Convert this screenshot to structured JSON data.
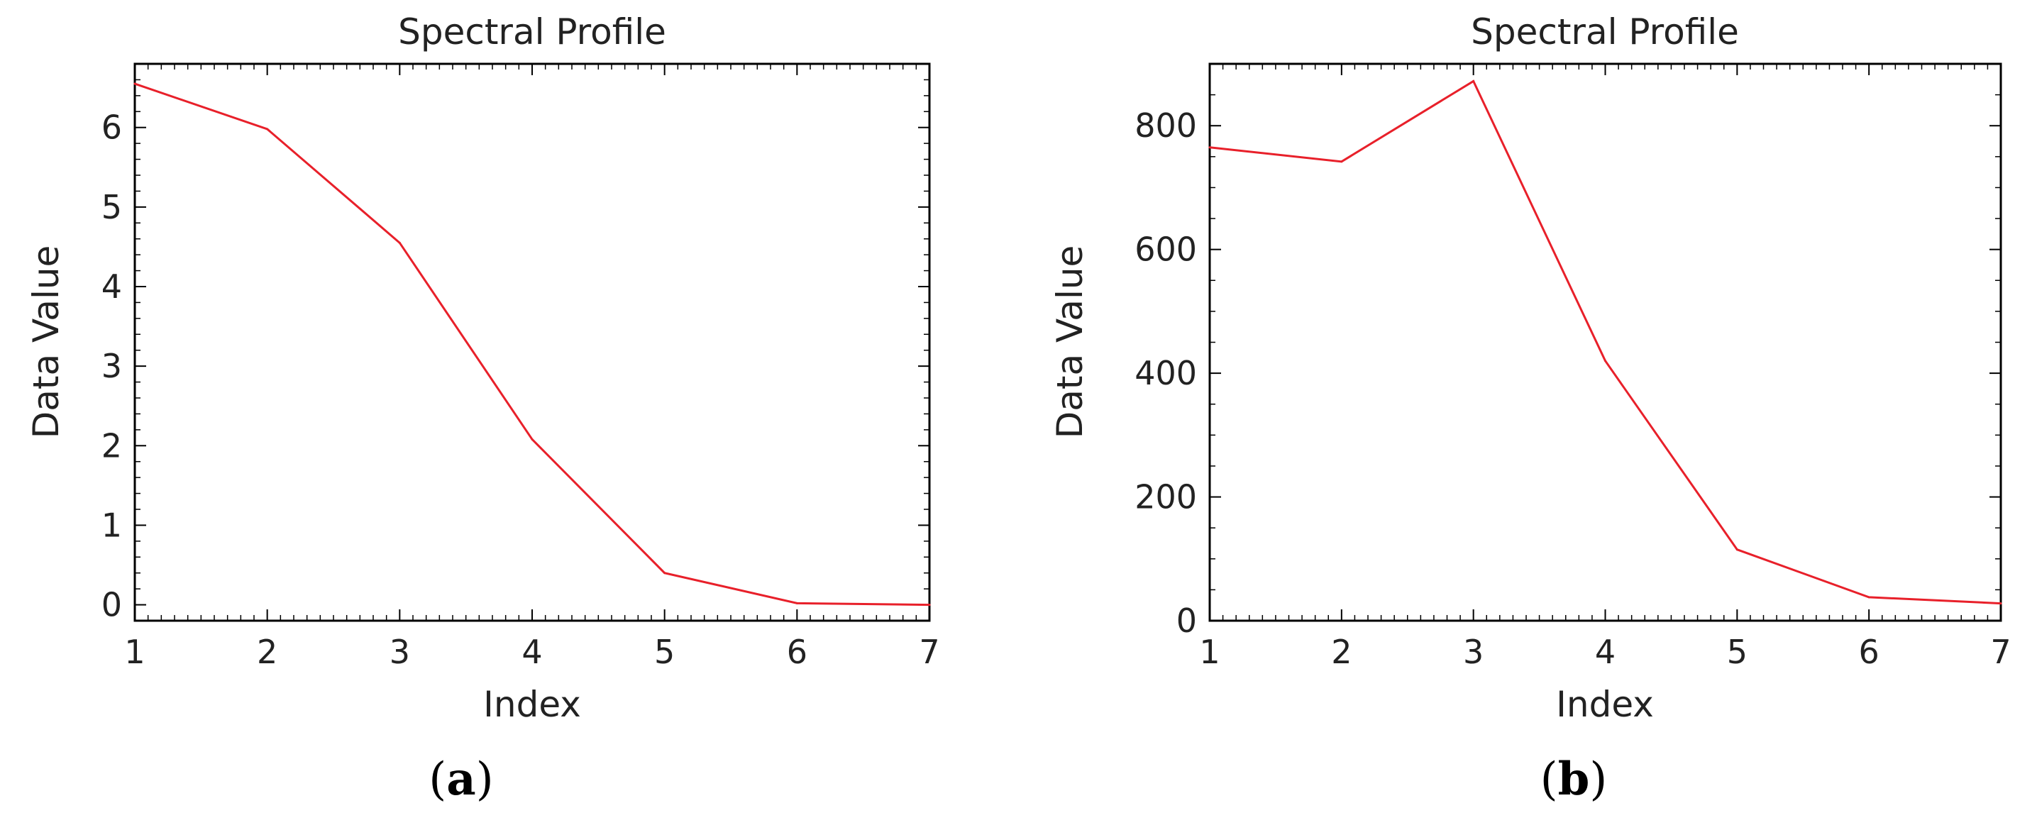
{
  "chart_data": [
    {
      "type": "line",
      "title": "Spectral Profile",
      "xlabel": "Index",
      "ylabel": "Data Value",
      "xlim": [
        1,
        7
      ],
      "ylim": [
        -0.2,
        6.8
      ],
      "xticks": [
        1,
        2,
        3,
        4,
        5,
        6,
        7
      ],
      "yticks": [
        0,
        1,
        2,
        3,
        4,
        5,
        6
      ],
      "x": [
        1,
        2,
        3,
        4,
        5,
        6,
        7
      ],
      "values": [
        6.55,
        5.98,
        4.55,
        2.08,
        0.4,
        0.02,
        0.0
      ],
      "line_color": "#e8202a",
      "grid": false,
      "panel_label": {
        "open": "(",
        "letter": "a",
        "close": ")"
      }
    },
    {
      "type": "line",
      "title": "Spectral Profile",
      "xlabel": "Index",
      "ylabel": "Data Value",
      "xlim": [
        1,
        7
      ],
      "ylim": [
        0,
        900
      ],
      "xticks": [
        1,
        2,
        3,
        4,
        5,
        6,
        7
      ],
      "yticks": [
        0,
        200,
        400,
        600,
        800
      ],
      "x": [
        1,
        2,
        3,
        4,
        5,
        6,
        7
      ],
      "values": [
        765,
        742,
        872,
        420,
        115,
        38,
        28
      ],
      "line_color": "#e8202a",
      "grid": false,
      "panel_label": {
        "open": "(",
        "letter": "b",
        "close": ")"
      }
    }
  ]
}
